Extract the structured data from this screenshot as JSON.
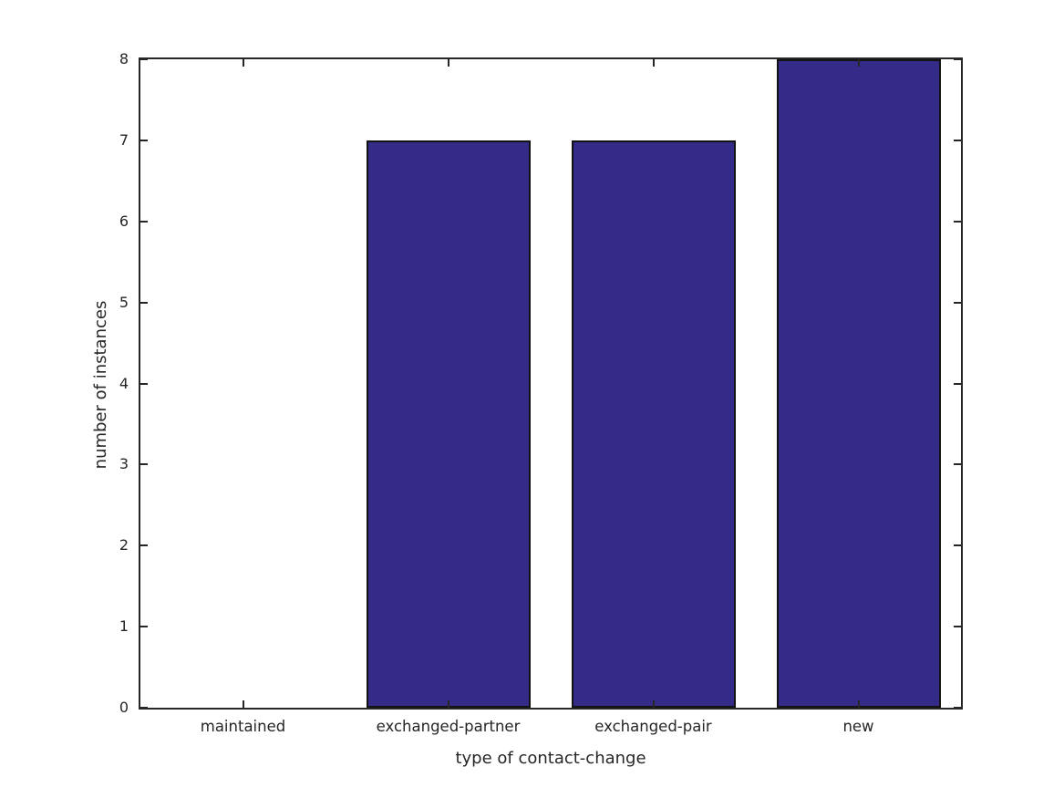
{
  "chart_data": {
    "type": "bar",
    "categories": [
      "maintained",
      "exchanged-partner",
      "exchanged-pair",
      "new"
    ],
    "values": [
      0,
      7,
      7,
      8
    ],
    "title": "",
    "xlabel": "type of contact-change",
    "ylabel": "number of instances",
    "ylim": [
      0,
      8
    ],
    "yticks": [
      0,
      1,
      2,
      3,
      4,
      5,
      6,
      7,
      8
    ],
    "xlim": [
      -0.5,
      3.5
    ],
    "bar_width_fraction": 0.8,
    "bar_color": "#342a87",
    "bar_edge_color": "#121212",
    "axis_color": "#262626",
    "text_color": "#262626",
    "background_color": "#ffffff",
    "grid": false,
    "legend": false,
    "tick_direction": "in",
    "ticks_all_sides": true
  }
}
